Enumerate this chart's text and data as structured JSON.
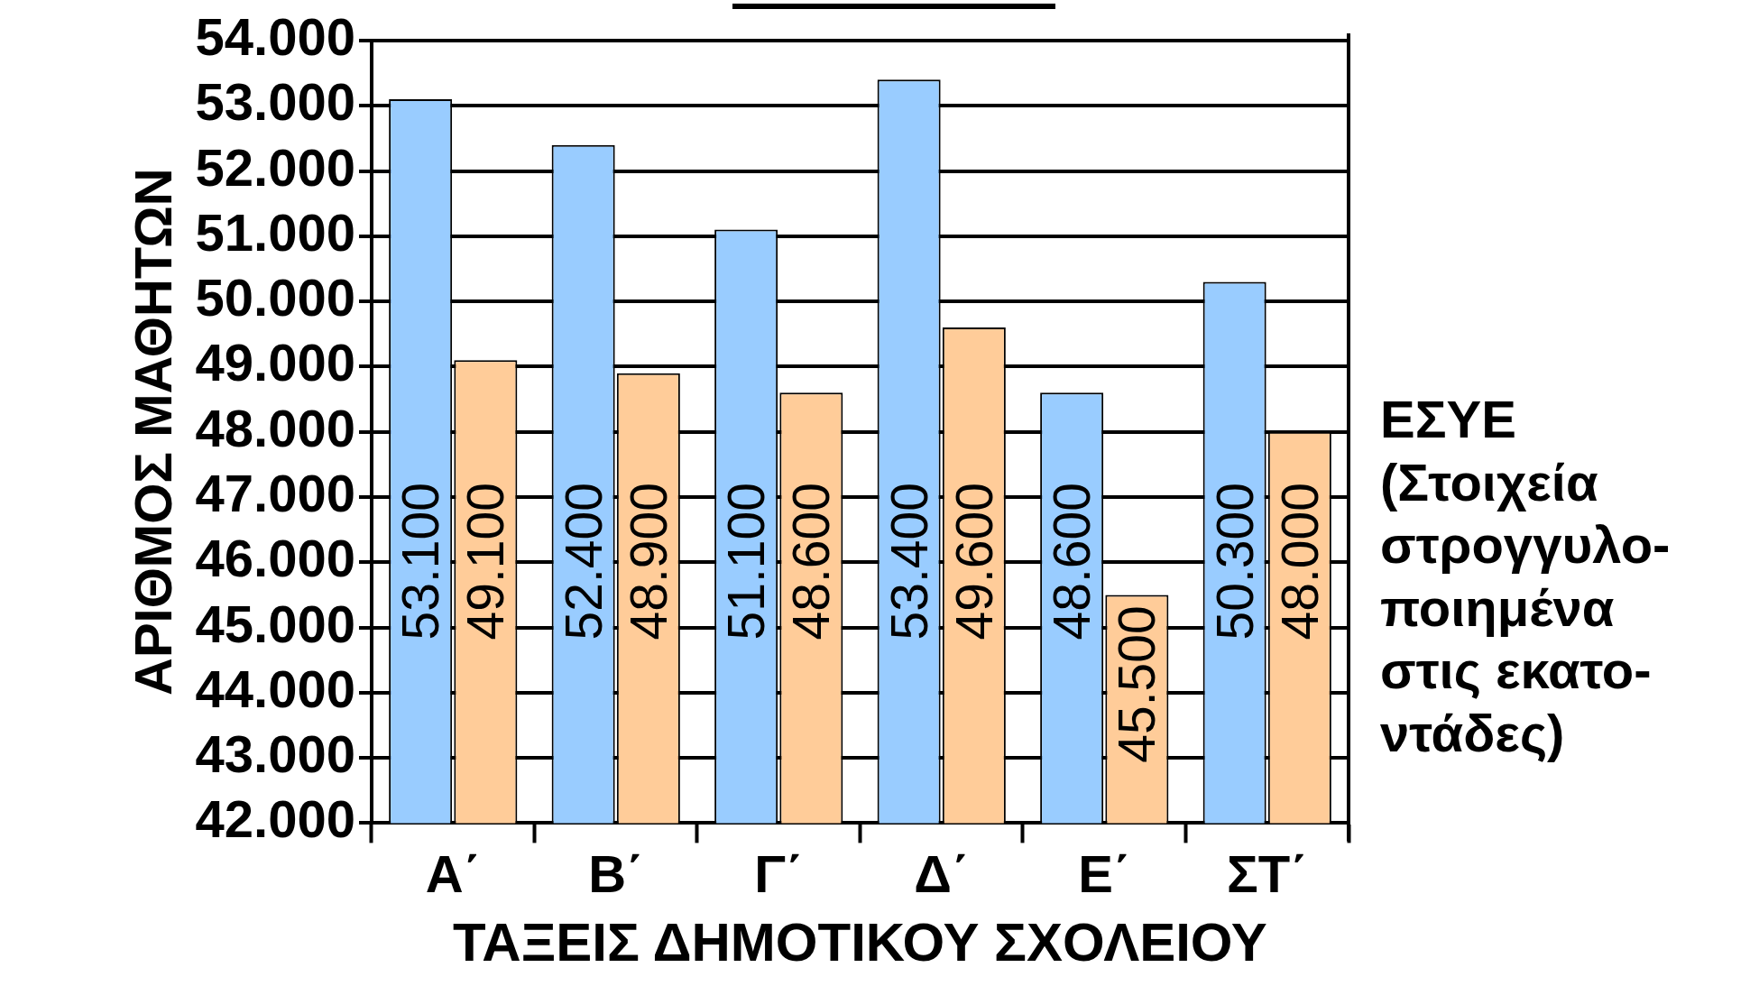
{
  "chart_data": {
    "type": "bar",
    "xlabel": "ΤΑΞΕΙΣ ΔΗΜΟΤΙΚΟΥ ΣΧΟΛΕΙΟΥ",
    "ylabel": "ΑΡΙΘΜΟΣ ΜΑΘΗΤΩΝ",
    "annotations": [
      "ΕΣΥΕ\n(Στοιχεία\nστρογγυλο-\nποιημένα\nστις εκατο-\nντάδες)"
    ],
    "categories": [
      "Α΄",
      "Β΄",
      "Γ΄",
      "Δ΄",
      "Ε΄",
      "ΣΤ΄"
    ],
    "series": [
      {
        "color": "#99ccff",
        "values": [
          53100,
          52400,
          51100,
          53400,
          48600,
          50300
        ],
        "value_labels": [
          "53.100",
          "52.400",
          "51.100",
          "53.400",
          "48.600",
          "50.300"
        ]
      },
      {
        "color": "#ffcc99",
        "values": [
          49100,
          48900,
          48600,
          49600,
          45500,
          48000
        ],
        "value_labels": [
          "49.100",
          "48.900",
          "48.600",
          "49.600",
          "45.500",
          "48.000"
        ]
      }
    ],
    "ylim": [
      42000,
      54000
    ],
    "yticks": [
      {
        "value": 42000,
        "label": "42.000"
      },
      {
        "value": 43000,
        "label": "43.000"
      },
      {
        "value": 44000,
        "label": "44.000"
      },
      {
        "value": 45000,
        "label": "45.000"
      },
      {
        "value": 46000,
        "label": "46.000"
      },
      {
        "value": 47000,
        "label": "47.000"
      },
      {
        "value": 48000,
        "label": "48.000"
      },
      {
        "value": 49000,
        "label": "49.000"
      },
      {
        "value": 50000,
        "label": "50.000"
      },
      {
        "value": 51000,
        "label": "51.000"
      },
      {
        "value": 52000,
        "label": "52.000"
      },
      {
        "value": 53000,
        "label": "53.000"
      },
      {
        "value": 54000,
        "label": "54.000"
      }
    ],
    "grid": "y",
    "legend": false
  }
}
